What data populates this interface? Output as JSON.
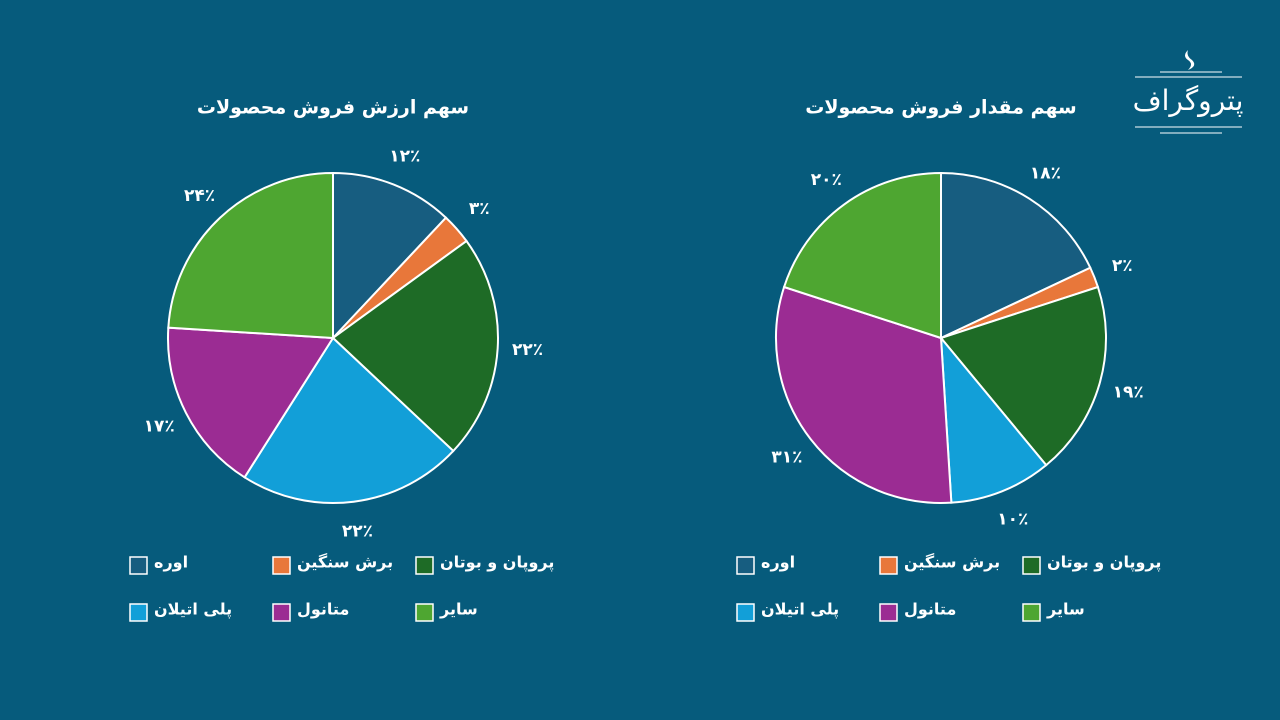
{
  "logo": "پتروگراف",
  "chart_data": [
    {
      "type": "pie",
      "title": "سهم ارزش فروش محصولات",
      "categories": [
        "اوره",
        "برش سنگین",
        "پروپان و بوتان",
        "پلی اتیلان",
        "متانول",
        "سایر"
      ],
      "values": [
        12,
        3,
        22,
        22,
        17,
        24
      ],
      "value_labels": [
        "۱۲٪",
        "۳٪",
        "۲۲٪",
        "۲۲٪",
        "۱۷٪",
        "۲۴٪"
      ],
      "colors": [
        "#175d80",
        "#e8773a",
        "#1e6b26",
        "#129fd8",
        "#9b2c93",
        "#4ea631"
      ]
    },
    {
      "type": "pie",
      "title": "سهم مقدار فروش محصولات",
      "categories": [
        "اوره",
        "برش سنگین",
        "پروپان و بوتان",
        "پلی اتیلان",
        "متانول",
        "سایر"
      ],
      "values": [
        18,
        2,
        19,
        10,
        31,
        20
      ],
      "value_labels": [
        "۱۸٪",
        "۲٪",
        "۱۹٪",
        "۱۰٪",
        "۳۱٪",
        "۲۰٪"
      ],
      "colors": [
        "#175d80",
        "#e8773a",
        "#1e6b26",
        "#129fd8",
        "#9b2c93",
        "#4ea631"
      ]
    }
  ]
}
